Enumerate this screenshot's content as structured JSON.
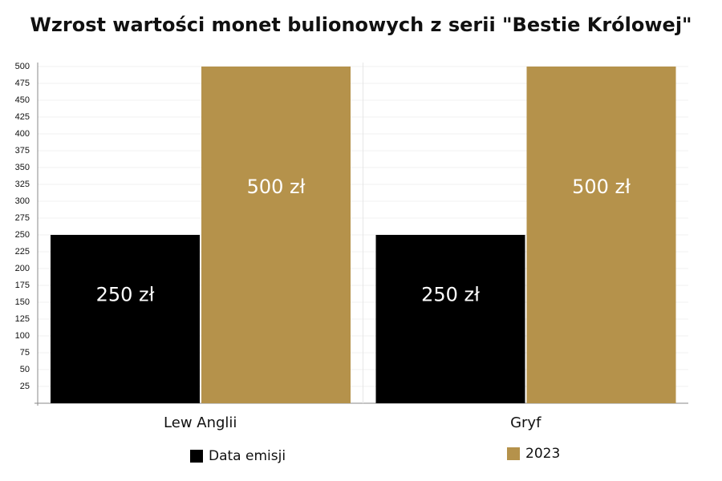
{
  "chart_data": {
    "type": "bar",
    "title": "Wzrost wartości monet bulionowych z serii \"Bestie Królowej\"",
    "categories": [
      "Lew Anglii",
      "Gryf"
    ],
    "series": [
      {
        "name": "Data emisji",
        "color": "#000000",
        "values": [
          250,
          250
        ],
        "value_labels": [
          "250 zł",
          "250 zł"
        ]
      },
      {
        "name": "2023",
        "color": "#b5924b",
        "values": [
          500,
          500
        ],
        "value_labels": [
          "500 zł",
          "500 zł"
        ]
      }
    ],
    "ylim": [
      0,
      500
    ],
    "yticks": [
      25,
      50,
      75,
      100,
      125,
      150,
      175,
      200,
      225,
      250,
      275,
      300,
      325,
      350,
      375,
      400,
      425,
      450,
      475,
      500
    ],
    "grid": true
  }
}
